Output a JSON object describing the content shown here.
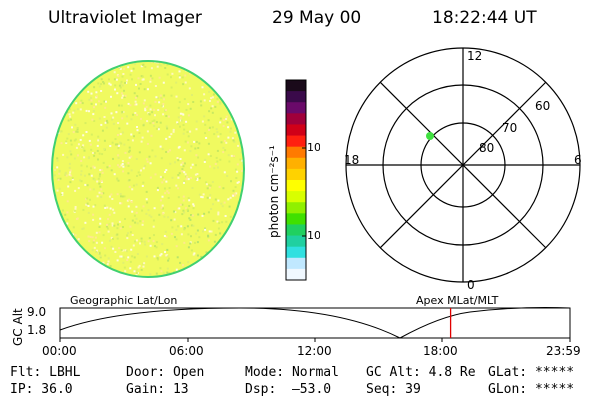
{
  "header": {
    "title": "Ultraviolet Imager",
    "date": "29 May 00",
    "time": "18:22:44 UT"
  },
  "colorbar": {
    "unit_label": "photon cm⁻²s⁻¹",
    "ticks": [
      "100",
      "10"
    ],
    "colors": [
      "#1a0a1a",
      "#3a0a4a",
      "#6a0a6a",
      "#a0003a",
      "#d00018",
      "#ff2010",
      "#ff7a00",
      "#ffb000",
      "#ffd200",
      "#ffff00",
      "#d8ff00",
      "#90f000",
      "#40e000",
      "#20d060",
      "#20d0a0",
      "#30e0e0",
      "#c0e8ff",
      "#f0f8ff"
    ]
  },
  "polar": {
    "labels": {
      "top": "12",
      "left": "18",
      "right": "6",
      "bottom": "0"
    },
    "lat_labels": [
      "60",
      "70",
      "80"
    ],
    "marker_color": "#40e040"
  },
  "altitude_plot": {
    "ylabel": "GC Alt",
    "yticks": [
      "9.0",
      "1.8"
    ],
    "left_title": "Geographic Lat/Lon",
    "right_title": "Apex MLat/MLT",
    "xticks": [
      "00:00",
      "06:00",
      "12:00",
      "18:00",
      "23:59"
    ],
    "current_time_hours": 18.38,
    "marker_color": "#e00000"
  },
  "info": {
    "row1": {
      "flt": "Flt: LBHL",
      "door": "Door: Open",
      "mode": "Mode: Normal",
      "gc_alt": "GC Alt: 4.8 Re",
      "glat": "GLat: *****"
    },
    "row2": {
      "ip": "IP: 36.0",
      "gain": "Gain: 13",
      "dsp": "Dsp:  –53.0",
      "seq": "Seq: 39",
      "glon": "GLon: *****"
    }
  },
  "image": {
    "disk_color": "#f0fa60",
    "edge_color": "#40d070"
  }
}
